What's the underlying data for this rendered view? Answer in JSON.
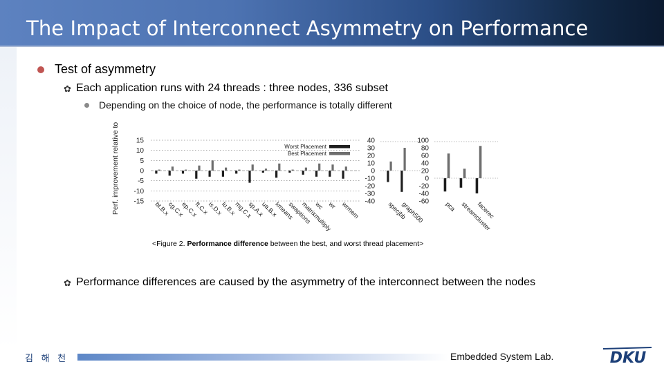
{
  "slide": {
    "title": "The Impact of Interconnect Asymmetry on Performance",
    "bullets": {
      "l1": "Test of asymmetry",
      "l2_first": "Each application runs with 24 threads : three nodes, 336 subset",
      "l3": "Depending on the choice of node, the performance is totally different",
      "l2_second": "Performance differences are caused by the asymmetry of the interconnect between the nodes"
    },
    "caption": {
      "before": "<Figure 2. ",
      "bold": "Performance difference",
      "after": " between the best, and worst thread placement>"
    },
    "footer": {
      "author": "김 해 천",
      "lab": "Embedded System Lab.",
      "logo_text": "DKU"
    },
    "colors": {
      "title_text": "#ffffff",
      "bullet_l1": "#c05552",
      "worst": "#1e1e1e",
      "best": "#6e6e6e"
    },
    "icons": {
      "l1_bullet": "filled-circle",
      "l2_bullet": "gear-like-flower",
      "l3_bullet": "small-circle"
    }
  },
  "chart_data": {
    "type": "bar",
    "ylabel": "Perf. improvement relative to average placement (%)",
    "legend": [
      "Worst Placement",
      "Best Placement"
    ],
    "legend_position": "top-right",
    "groups": [
      {
        "yticks": [
          "15",
          "10",
          "5",
          "0",
          "-5",
          "-10",
          "-15"
        ],
        "ylim": [
          -15,
          15
        ],
        "categories": [
          "bt.B.x",
          "cg.C.x",
          "ep.C.x",
          "ft.C.x",
          "is.D.x",
          "lu.B.x",
          "mg.C.x",
          "sp.A.x",
          "ua.B.x",
          "kmeans",
          "swaptions",
          "matrixmultiply",
          "wc",
          "wr",
          "wrmem"
        ],
        "series": [
          {
            "name": "Worst Placement",
            "values": [
              -1.5,
              -2.5,
              -1.5,
              -4,
              -3,
              -3,
              -1.5,
              -6,
              -1,
              -3.5,
              -1,
              -2,
              -3,
              -3,
              -4
            ]
          },
          {
            "name": "Best Placement",
            "values": [
              0.5,
              2,
              0.5,
              2.5,
              5,
              1.5,
              0.5,
              3,
              1,
              3.5,
              0.5,
              1.5,
              3.5,
              3,
              2
            ]
          }
        ]
      },
      {
        "yticks": [
          "40",
          "30",
          "20",
          "10",
          "0",
          "-10",
          "-20",
          "-30",
          "-40"
        ],
        "ylim": [
          -40,
          40
        ],
        "categories": [
          "specjbb",
          "graph500"
        ],
        "series": [
          {
            "name": "Worst Placement",
            "values": [
              -15,
              -28
            ]
          },
          {
            "name": "Best Placement",
            "values": [
              12,
              30
            ]
          }
        ]
      },
      {
        "yticks": [
          "100",
          "80",
          "60",
          "40",
          "20",
          "0",
          "-20",
          "-40",
          "-60"
        ],
        "ylim": [
          -60,
          100
        ],
        "categories": [
          "pca",
          "streamcluster",
          "facerec"
        ],
        "series": [
          {
            "name": "Worst Placement",
            "values": [
              -35,
              -25,
              -40
            ]
          },
          {
            "name": "Best Placement",
            "values": [
              65,
              25,
              85
            ]
          }
        ]
      }
    ]
  }
}
